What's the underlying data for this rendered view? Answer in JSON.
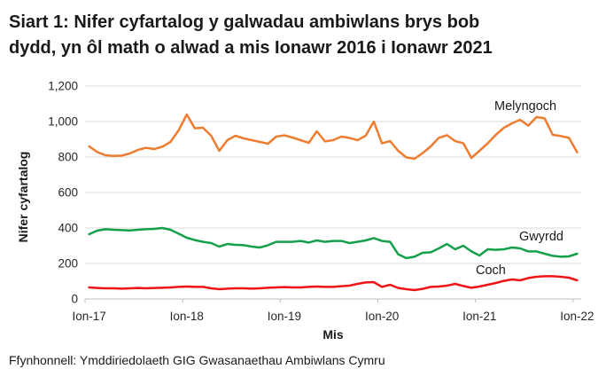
{
  "heading": {
    "line1": "Siart 1: Nifer cyfartalog y galwadau ambiwlans brys bob",
    "line2": "dydd, yn ôl math o alwad a mis Ionawr 2016 i Ionawr 2021"
  },
  "source": "Ffynhonnell: Ymddiriedolaeth GIG Gwasanaethau Ambiwlans Cymru",
  "chart_data": {
    "type": "line",
    "title": "Siart 1: Nifer cyfartalog y galwadau ambiwlans brys bob dydd, yn ôl math o alwad a mis Ionawr 2016 i Ionawr 2021",
    "xlabel": "Mis",
    "ylabel": "Nifer cyfartalog",
    "ylim": [
      0,
      1200
    ],
    "grid": "horizontal",
    "legend": "inline-labels",
    "x_frequency": "monthly",
    "x_tick_every": 12,
    "x_tick_labels": [
      "Ion-17",
      "Ion-18",
      "Ion-19",
      "Ion-20",
      "Ion-21",
      "Ion-22"
    ],
    "y_ticks": [
      {
        "value": 0,
        "label": "0"
      },
      {
        "value": 200,
        "label": "200"
      },
      {
        "value": 400,
        "label": "400"
      },
      {
        "value": 600,
        "label": "600"
      },
      {
        "value": 800,
        "label": "800"
      },
      {
        "value": 1000,
        "label": "1,000"
      },
      {
        "value": 1200,
        "label": "1,200"
      }
    ],
    "colors": {
      "grid": "#D9D9D9",
      "axis": "#BFBFBF"
    },
    "series": [
      {
        "name": "Melyngoch",
        "color": "#ED7D31",
        "values": [
          860,
          828,
          810,
          806,
          808,
          820,
          840,
          852,
          845,
          858,
          885,
          950,
          1040,
          962,
          965,
          920,
          835,
          895,
          920,
          905,
          895,
          885,
          875,
          915,
          922,
          910,
          895,
          880,
          945,
          888,
          895,
          915,
          908,
          895,
          920,
          1000,
          877,
          890,
          835,
          798,
          790,
          822,
          860,
          908,
          923,
          890,
          878,
          795,
          835,
          877,
          925,
          965,
          990,
          1010,
          977,
          1025,
          1018,
          925,
          918,
          908,
          827
        ]
      },
      {
        "name": "Gwyrdd",
        "color": "#14A04B",
        "values": [
          365,
          385,
          393,
          390,
          388,
          386,
          390,
          393,
          395,
          400,
          390,
          368,
          345,
          332,
          322,
          315,
          295,
          310,
          305,
          303,
          295,
          290,
          303,
          322,
          322,
          322,
          327,
          318,
          330,
          322,
          327,
          327,
          315,
          322,
          330,
          343,
          327,
          322,
          252,
          230,
          238,
          260,
          263,
          285,
          310,
          280,
          300,
          268,
          245,
          280,
          277,
          280,
          290,
          285,
          268,
          268,
          255,
          243,
          238,
          240,
          255
        ]
      },
      {
        "name": "Coch",
        "color": "#F01414",
        "values": [
          65,
          62,
          60,
          60,
          58,
          60,
          62,
          60,
          62,
          63,
          65,
          68,
          70,
          68,
          68,
          60,
          55,
          58,
          60,
          60,
          58,
          60,
          63,
          65,
          67,
          65,
          65,
          68,
          70,
          68,
          68,
          72,
          75,
          85,
          93,
          95,
          68,
          80,
          62,
          55,
          50,
          57,
          68,
          70,
          75,
          85,
          73,
          63,
          70,
          80,
          90,
          102,
          110,
          105,
          118,
          125,
          128,
          128,
          125,
          120,
          105
        ]
      }
    ]
  }
}
